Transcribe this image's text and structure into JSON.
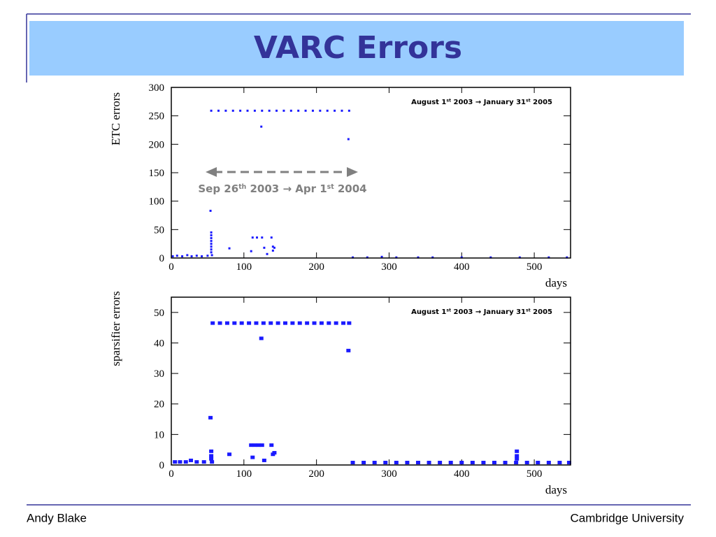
{
  "slide": {
    "title": "VARC Errors",
    "footer_left": "Andy Blake",
    "footer_right": "Cambridge University"
  },
  "chart_data": [
    {
      "type": "scatter",
      "ylabel": "ETC errors",
      "xlabel": "days",
      "annotation": [
        "August 1",
        "st",
        " 2003 → January 31",
        "st",
        " 2005"
      ],
      "arrow_label": [
        "Sep 26",
        "th",
        " 2003 → Apr 1",
        "st",
        " 2004"
      ],
      "xlim": [
        0,
        550
      ],
      "xticks": [
        0,
        100,
        200,
        300,
        400,
        500
      ],
      "ylim": [
        0,
        300
      ],
      "yticks": [
        0,
        50,
        100,
        150,
        200,
        250,
        300
      ],
      "marker_size": [
        3,
        3
      ],
      "series": [
        {
          "color": "#1a1aff",
          "x": [
            2,
            8,
            15,
            22,
            28,
            35,
            42,
            50,
            54,
            55,
            55,
            55,
            55,
            55,
            55,
            55,
            55,
            56,
            55,
            65,
            75,
            85,
            95,
            105,
            115,
            125,
            135,
            145,
            155,
            165,
            175,
            185,
            195,
            205,
            215,
            225,
            235,
            245,
            80,
            110,
            112,
            118,
            124,
            125,
            128,
            132,
            138,
            140,
            140,
            142,
            244,
            250,
            270,
            290,
            310,
            340,
            360,
            400,
            440,
            480,
            520,
            545
          ],
          "values": [
            3,
            4,
            3,
            5,
            3,
            4,
            3,
            4,
            83,
            45,
            40,
            35,
            30,
            25,
            20,
            15,
            10,
            5,
            259,
            259,
            259,
            259,
            259,
            259,
            259,
            259,
            259,
            259,
            259,
            259,
            259,
            259,
            259,
            259,
            259,
            259,
            259,
            259,
            17,
            12,
            36,
            36,
            231,
            36,
            18,
            7,
            36,
            20,
            13,
            18,
            209,
            1,
            1,
            2,
            1,
            1,
            1,
            1,
            1,
            1,
            1,
            1
          ]
        }
      ]
    },
    {
      "type": "scatter",
      "ylabel": "sparsifier errors",
      "xlabel": "days",
      "annotation": [
        "August 1",
        "st",
        " 2003 → January 31",
        "st",
        " 2005"
      ],
      "xlim": [
        0,
        550
      ],
      "xticks": [
        0,
        100,
        200,
        300,
        400,
        500
      ],
      "ylim": [
        0,
        55
      ],
      "yticks": [
        0,
        10,
        20,
        30,
        40,
        50
      ],
      "marker_size": [
        6,
        5
      ],
      "series": [
        {
          "color": "#1a1aff",
          "x": [
            5,
            12,
            20,
            27,
            35,
            45,
            54,
            55,
            55,
            55,
            56,
            57,
            67,
            77,
            87,
            97,
            107,
            117,
            127,
            137,
            147,
            157,
            167,
            177,
            187,
            197,
            207,
            217,
            227,
            237,
            245,
            124,
            244,
            80,
            110,
            115,
            120,
            125,
            112,
            128,
            138,
            140,
            142,
            476,
            476,
            476,
            250,
            265,
            280,
            295,
            310,
            325,
            340,
            355,
            370,
            385,
            400,
            415,
            430,
            445,
            460,
            475,
            490,
            505,
            520,
            535,
            548
          ],
          "values": [
            1,
            1,
            1,
            1.5,
            1,
            1,
            15.5,
            4.5,
            3,
            2,
            1,
            46.5,
            46.5,
            46.5,
            46.5,
            46.5,
            46.5,
            46.5,
            46.5,
            46.5,
            46.5,
            46.5,
            46.5,
            46.5,
            46.5,
            46.5,
            46.5,
            46.5,
            46.5,
            46.5,
            46.5,
            41.5,
            37.5,
            3.5,
            6.5,
            6.5,
            6.5,
            6.5,
            2.5,
            1.5,
            6.5,
            3.5,
            4,
            4.5,
            3,
            2,
            0.8,
            0.8,
            0.8,
            0.8,
            0.8,
            0.8,
            0.8,
            0.8,
            0.8,
            0.8,
            0.8,
            0.8,
            0.8,
            0.8,
            0.8,
            0.8,
            0.8,
            0.8,
            0.8,
            0.8,
            0.8
          ]
        }
      ]
    }
  ]
}
